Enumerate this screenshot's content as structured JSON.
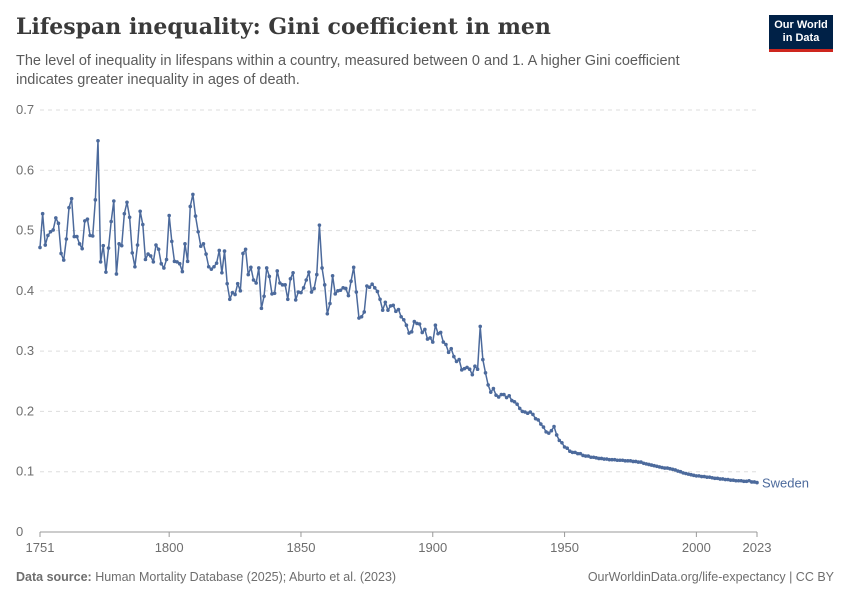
{
  "header": {
    "title": "Lifespan inequality: Gini coefficient in men",
    "subtitle": "The level of inequality in lifespans within a country, measured between 0 and 1. A higher Gini coefficient indicates greater inequality in ages of death."
  },
  "logo": {
    "line1": "Our World",
    "line2": "in Data"
  },
  "footer": {
    "source_label": "Data source:",
    "source_text": " Human Mortality Database (2025); Aburto et al. (2023)",
    "credit": "OurWorldinData.org/life-expectancy | CC BY"
  },
  "chart_data": {
    "type": "line",
    "title": "Lifespan inequality: Gini coefficient in men",
    "xlabel": "",
    "ylabel": "",
    "xlim": [
      1751,
      2023
    ],
    "ylim": [
      0,
      0.7
    ],
    "y_ticks": [
      0,
      0.1,
      0.2,
      0.3,
      0.4,
      0.5,
      0.6,
      0.7
    ],
    "x_ticks": [
      1751,
      1800,
      1850,
      1900,
      1950,
      2000,
      2023
    ],
    "grid": "horizontal dashed",
    "colors": {
      "series": "#4c6a9c",
      "grid": "#dddddd",
      "axis": "#999999"
    },
    "series": [
      {
        "name": "Sweden",
        "points": [
          [
            1751,
            0.472
          ],
          [
            1752,
            0.528
          ],
          [
            1753,
            0.476
          ],
          [
            1754,
            0.492
          ],
          [
            1755,
            0.498
          ],
          [
            1756,
            0.501
          ],
          [
            1757,
            0.521
          ],
          [
            1758,
            0.512
          ],
          [
            1759,
            0.462
          ],
          [
            1760,
            0.451
          ],
          [
            1761,
            0.486
          ],
          [
            1762,
            0.538
          ],
          [
            1763,
            0.553
          ],
          [
            1764,
            0.49
          ],
          [
            1765,
            0.49
          ],
          [
            1766,
            0.478
          ],
          [
            1767,
            0.47
          ],
          [
            1768,
            0.516
          ],
          [
            1769,
            0.519
          ],
          [
            1770,
            0.492
          ],
          [
            1771,
            0.491
          ],
          [
            1772,
            0.551
          ],
          [
            1773,
            0.649
          ],
          [
            1774,
            0.448
          ],
          [
            1775,
            0.475
          ],
          [
            1776,
            0.431
          ],
          [
            1777,
            0.471
          ],
          [
            1778,
            0.515
          ],
          [
            1779,
            0.549
          ],
          [
            1780,
            0.428
          ],
          [
            1781,
            0.478
          ],
          [
            1782,
            0.475
          ],
          [
            1783,
            0.528
          ],
          [
            1784,
            0.547
          ],
          [
            1785,
            0.522
          ],
          [
            1786,
            0.463
          ],
          [
            1787,
            0.44
          ],
          [
            1788,
            0.476
          ],
          [
            1789,
            0.532
          ],
          [
            1790,
            0.51
          ],
          [
            1791,
            0.452
          ],
          [
            1792,
            0.461
          ],
          [
            1793,
            0.458
          ],
          [
            1794,
            0.448
          ],
          [
            1795,
            0.476
          ],
          [
            1796,
            0.469
          ],
          [
            1797,
            0.445
          ],
          [
            1798,
            0.438
          ],
          [
            1799,
            0.452
          ],
          [
            1800,
            0.525
          ],
          [
            1801,
            0.482
          ],
          [
            1802,
            0.449
          ],
          [
            1803,
            0.448
          ],
          [
            1804,
            0.445
          ],
          [
            1805,
            0.432
          ],
          [
            1806,
            0.478
          ],
          [
            1807,
            0.449
          ],
          [
            1808,
            0.54
          ],
          [
            1809,
            0.56
          ],
          [
            1810,
            0.524
          ],
          [
            1811,
            0.498
          ],
          [
            1812,
            0.474
          ],
          [
            1813,
            0.478
          ],
          [
            1814,
            0.461
          ],
          [
            1815,
            0.44
          ],
          [
            1816,
            0.436
          ],
          [
            1817,
            0.44
          ],
          [
            1818,
            0.446
          ],
          [
            1819,
            0.467
          ],
          [
            1820,
            0.43
          ],
          [
            1821,
            0.466
          ],
          [
            1822,
            0.412
          ],
          [
            1823,
            0.386
          ],
          [
            1824,
            0.397
          ],
          [
            1825,
            0.394
          ],
          [
            1826,
            0.412
          ],
          [
            1827,
            0.4
          ],
          [
            1828,
            0.462
          ],
          [
            1829,
            0.469
          ],
          [
            1830,
            0.427
          ],
          [
            1831,
            0.439
          ],
          [
            1832,
            0.418
          ],
          [
            1833,
            0.413
          ],
          [
            1834,
            0.438
          ],
          [
            1835,
            0.371
          ],
          [
            1836,
            0.391
          ],
          [
            1837,
            0.438
          ],
          [
            1838,
            0.424
          ],
          [
            1839,
            0.395
          ],
          [
            1840,
            0.396
          ],
          [
            1841,
            0.433
          ],
          [
            1842,
            0.413
          ],
          [
            1843,
            0.41
          ],
          [
            1844,
            0.41
          ],
          [
            1845,
            0.386
          ],
          [
            1846,
            0.42
          ],
          [
            1847,
            0.43
          ],
          [
            1848,
            0.385
          ],
          [
            1849,
            0.398
          ],
          [
            1850,
            0.397
          ],
          [
            1851,
            0.405
          ],
          [
            1852,
            0.418
          ],
          [
            1853,
            0.431
          ],
          [
            1854,
            0.398
          ],
          [
            1855,
            0.404
          ],
          [
            1856,
            0.427
          ],
          [
            1857,
            0.509
          ],
          [
            1858,
            0.438
          ],
          [
            1859,
            0.41
          ],
          [
            1860,
            0.362
          ],
          [
            1861,
            0.379
          ],
          [
            1862,
            0.425
          ],
          [
            1863,
            0.395
          ],
          [
            1864,
            0.4
          ],
          [
            1865,
            0.401
          ],
          [
            1866,
            0.405
          ],
          [
            1867,
            0.404
          ],
          [
            1868,
            0.392
          ],
          [
            1869,
            0.416
          ],
          [
            1870,
            0.439
          ],
          [
            1871,
            0.398
          ],
          [
            1872,
            0.355
          ],
          [
            1873,
            0.357
          ],
          [
            1874,
            0.365
          ],
          [
            1875,
            0.408
          ],
          [
            1876,
            0.406
          ],
          [
            1877,
            0.411
          ],
          [
            1878,
            0.405
          ],
          [
            1879,
            0.399
          ],
          [
            1880,
            0.386
          ],
          [
            1881,
            0.368
          ],
          [
            1882,
            0.381
          ],
          [
            1883,
            0.368
          ],
          [
            1884,
            0.375
          ],
          [
            1885,
            0.376
          ],
          [
            1886,
            0.366
          ],
          [
            1887,
            0.369
          ],
          [
            1888,
            0.357
          ],
          [
            1889,
            0.352
          ],
          [
            1890,
            0.343
          ],
          [
            1891,
            0.33
          ],
          [
            1892,
            0.332
          ],
          [
            1893,
            0.349
          ],
          [
            1894,
            0.346
          ],
          [
            1895,
            0.345
          ],
          [
            1896,
            0.331
          ],
          [
            1897,
            0.336
          ],
          [
            1898,
            0.32
          ],
          [
            1899,
            0.322
          ],
          [
            1900,
            0.315
          ],
          [
            1901,
            0.343
          ],
          [
            1902,
            0.329
          ],
          [
            1903,
            0.331
          ],
          [
            1904,
            0.315
          ],
          [
            1905,
            0.311
          ],
          [
            1906,
            0.298
          ],
          [
            1907,
            0.304
          ],
          [
            1908,
            0.291
          ],
          [
            1909,
            0.283
          ],
          [
            1910,
            0.286
          ],
          [
            1911,
            0.269
          ],
          [
            1912,
            0.271
          ],
          [
            1913,
            0.273
          ],
          [
            1914,
            0.27
          ],
          [
            1915,
            0.261
          ],
          [
            1916,
            0.275
          ],
          [
            1917,
            0.27
          ],
          [
            1918,
            0.341
          ],
          [
            1919,
            0.286
          ],
          [
            1920,
            0.264
          ],
          [
            1921,
            0.244
          ],
          [
            1922,
            0.232
          ],
          [
            1923,
            0.238
          ],
          [
            1924,
            0.227
          ],
          [
            1925,
            0.224
          ],
          [
            1926,
            0.228
          ],
          [
            1927,
            0.228
          ],
          [
            1928,
            0.223
          ],
          [
            1929,
            0.226
          ],
          [
            1930,
            0.218
          ],
          [
            1931,
            0.216
          ],
          [
            1932,
            0.212
          ],
          [
            1933,
            0.205
          ],
          [
            1934,
            0.2
          ],
          [
            1935,
            0.199
          ],
          [
            1936,
            0.197
          ],
          [
            1937,
            0.199
          ],
          [
            1938,
            0.195
          ],
          [
            1939,
            0.188
          ],
          [
            1940,
            0.186
          ],
          [
            1941,
            0.179
          ],
          [
            1942,
            0.174
          ],
          [
            1943,
            0.166
          ],
          [
            1944,
            0.164
          ],
          [
            1945,
            0.168
          ],
          [
            1946,
            0.175
          ],
          [
            1947,
            0.161
          ],
          [
            1948,
            0.152
          ],
          [
            1949,
            0.148
          ],
          [
            1950,
            0.141
          ],
          [
            1951,
            0.139
          ],
          [
            1952,
            0.134
          ],
          [
            1953,
            0.132
          ],
          [
            1954,
            0.132
          ],
          [
            1955,
            0.13
          ],
          [
            1956,
            0.13
          ],
          [
            1957,
            0.127
          ],
          [
            1958,
            0.126
          ],
          [
            1959,
            0.126
          ],
          [
            1960,
            0.124
          ],
          [
            1961,
            0.124
          ],
          [
            1962,
            0.123
          ],
          [
            1963,
            0.122
          ],
          [
            1964,
            0.122
          ],
          [
            1965,
            0.121
          ],
          [
            1966,
            0.121
          ],
          [
            1967,
            0.12
          ],
          [
            1968,
            0.12
          ],
          [
            1969,
            0.12
          ],
          [
            1970,
            0.119
          ],
          [
            1971,
            0.119
          ],
          [
            1972,
            0.119
          ],
          [
            1973,
            0.118
          ],
          [
            1974,
            0.118
          ],
          [
            1975,
            0.118
          ],
          [
            1976,
            0.117
          ],
          [
            1977,
            0.117
          ],
          [
            1978,
            0.116
          ],
          [
            1979,
            0.116
          ],
          [
            1980,
            0.114
          ],
          [
            1981,
            0.113
          ],
          [
            1982,
            0.112
          ],
          [
            1983,
            0.111
          ],
          [
            1984,
            0.11
          ],
          [
            1985,
            0.109
          ],
          [
            1986,
            0.108
          ],
          [
            1987,
            0.107
          ],
          [
            1988,
            0.106
          ],
          [
            1989,
            0.106
          ],
          [
            1990,
            0.105
          ],
          [
            1991,
            0.104
          ],
          [
            1992,
            0.103
          ],
          [
            1993,
            0.101
          ],
          [
            1994,
            0.1
          ],
          [
            1995,
            0.098
          ],
          [
            1996,
            0.097
          ],
          [
            1997,
            0.096
          ],
          [
            1998,
            0.095
          ],
          [
            1999,
            0.094
          ],
          [
            2000,
            0.093
          ],
          [
            2001,
            0.093
          ],
          [
            2002,
            0.092
          ],
          [
            2003,
            0.092
          ],
          [
            2004,
            0.091
          ],
          [
            2005,
            0.091
          ],
          [
            2006,
            0.09
          ],
          [
            2007,
            0.089
          ],
          [
            2008,
            0.089
          ],
          [
            2009,
            0.088
          ],
          [
            2010,
            0.088
          ],
          [
            2011,
            0.087
          ],
          [
            2012,
            0.087
          ],
          [
            2013,
            0.086
          ],
          [
            2014,
            0.086
          ],
          [
            2015,
            0.085
          ],
          [
            2016,
            0.085
          ],
          [
            2017,
            0.085
          ],
          [
            2018,
            0.084
          ],
          [
            2019,
            0.084
          ],
          [
            2020,
            0.085
          ],
          [
            2021,
            0.083
          ],
          [
            2022,
            0.083
          ],
          [
            2023,
            0.082
          ]
        ]
      }
    ]
  }
}
